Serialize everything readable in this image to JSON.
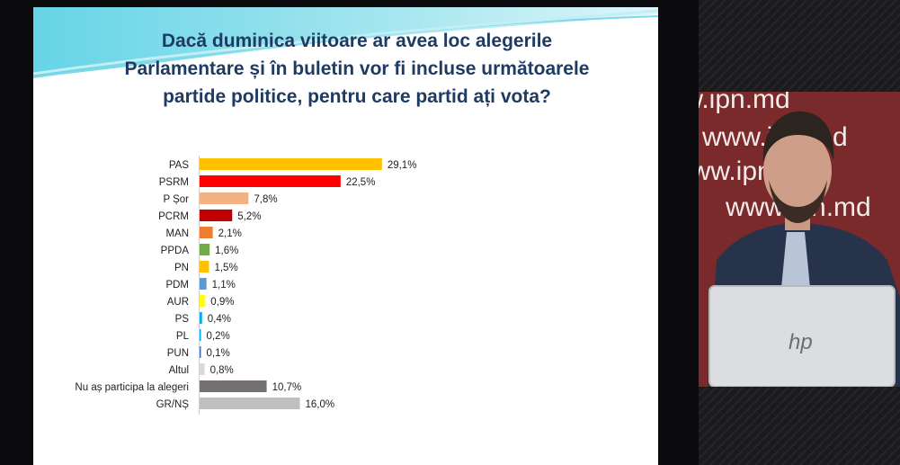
{
  "slide": {
    "title_lines": [
      "Dacă duminica viitoare ar avea loc alegerile",
      "Parlamentare și în buletin vor fi incluse următoarele",
      "partide politice, pentru care partid ați vota?"
    ]
  },
  "chart_data": {
    "type": "bar",
    "orientation": "horizontal",
    "categories": [
      "PAS",
      "PSRM",
      "P Șor",
      "PCRM",
      "MAN",
      "PPDA",
      "PN",
      "PDM",
      "AUR",
      "PS",
      "PL",
      "PUN",
      "Altul",
      "Nu aș participa la alegeri",
      "GR/NȘ"
    ],
    "values": [
      29.1,
      22.5,
      7.8,
      5.2,
      2.1,
      1.6,
      1.5,
      1.1,
      0.9,
      0.4,
      0.2,
      0.1,
      0.8,
      10.7,
      16.0
    ],
    "value_labels": [
      "29,1%",
      "22,5%",
      "7,8%",
      "5,2%",
      "2,1%",
      "1,6%",
      "1,5%",
      "1,1%",
      "0,9%",
      "0,4%",
      "0,2%",
      "0,1%",
      "0,8%",
      "10,7%",
      "16,0%"
    ],
    "colors": [
      "#ffc000",
      "#ff0000",
      "#f4b183",
      "#c00000",
      "#ed7d31",
      "#70ad47",
      "#ffc000",
      "#5b9bd5",
      "#ffff00",
      "#00b0f0",
      "#00b0f0",
      "#4472c4",
      "#d9d9d9",
      "#767171",
      "#bfbfbf"
    ],
    "xlim": [
      0,
      30
    ],
    "grid": false,
    "legend": "none"
  },
  "video": {
    "watermark_text": "www.ipn.md",
    "laptop_logo": "hp"
  }
}
